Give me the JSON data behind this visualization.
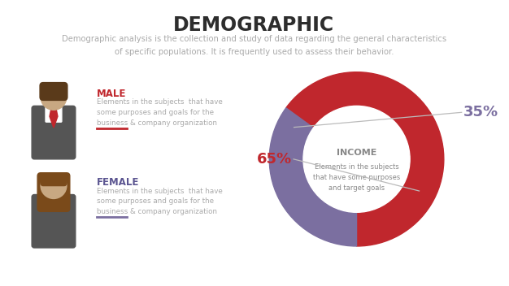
{
  "title": "DEMOGRAPHIC",
  "subtitle": "Demographic analysis is the collection and study of data regarding the general characteristics\nof specific populations. It is frequently used to assess their behavior.",
  "male_label": "MALE",
  "male_desc": "Elements in the subjects  that have\nsome purposes and goals for the\nbusiness & company organization",
  "female_label": "FEMALE",
  "female_desc": "Elements in the subjects  that have\nsome purposes and goals for the\nbusiness & company organization",
  "pie_label": "INCOME",
  "pie_desc": "Elements in the subjects\nthat have some purposes\nand target goals",
  "pct_red": 65,
  "pct_purple": 35,
  "pct_red_label": "65%",
  "pct_purple_label": "35%",
  "color_red": "#c0272d",
  "color_purple": "#7b6fa0",
  "color_male_label": "#c0272d",
  "color_female_label": "#5a5490",
  "color_title": "#2d2d2d",
  "color_subtitle": "#aaaaaa",
  "color_desc": "#aaaaaa",
  "color_income_label": "#888888",
  "color_divider_male": "#c0272d",
  "color_divider_female": "#7b6fa0",
  "bg_color": "#ffffff",
  "skin_color": "#c8a882",
  "hair_male_color": "#5a3a1a",
  "hair_female_color": "#7a4a1a",
  "suit_color": "#555555",
  "shirt_color": "#ffffff",
  "blouse_color": "#f0e8d8"
}
